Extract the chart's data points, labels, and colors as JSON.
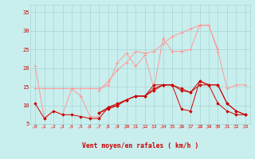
{
  "xlabel": "Vent moyen/en rafales ( km/h )",
  "ylim": [
    5,
    37
  ],
  "xlim": [
    -0.5,
    23.5
  ],
  "yticks": [
    5,
    10,
    15,
    20,
    25,
    30,
    35
  ],
  "x_ticks": [
    0,
    1,
    2,
    3,
    4,
    5,
    6,
    7,
    8,
    9,
    10,
    11,
    12,
    13,
    14,
    15,
    16,
    17,
    18,
    19,
    20,
    21,
    22,
    23
  ],
  "bg_color": "#c8efee",
  "grid_color": "#a8d4d0",
  "light_red": "#ff9999",
  "dark_red": "#cc0000",
  "series_light": [
    {
      "x": [
        0,
        1,
        2,
        3,
        4,
        5,
        6,
        7
      ],
      "y": [
        20.5,
        6.5,
        8.5,
        7.5,
        14.5,
        12.5,
        7.0,
        7.0
      ]
    },
    {
      "x": [
        0,
        1,
        2,
        3,
        4,
        5,
        6,
        7,
        8,
        9,
        10,
        11,
        12,
        13,
        14,
        15,
        16,
        17,
        18,
        19,
        20,
        21,
        22,
        23
      ],
      "y": [
        14.5,
        14.5,
        14.5,
        14.5,
        14.5,
        14.5,
        14.5,
        14.5,
        15.5,
        21.5,
        24.0,
        20.5,
        23.5,
        14.5,
        28.0,
        24.5,
        24.5,
        25.0,
        31.5,
        31.5,
        24.5,
        14.5,
        15.5,
        15.5
      ]
    },
    {
      "x": [
        7,
        8,
        9,
        10,
        11,
        12,
        13,
        14,
        15,
        16,
        17,
        18,
        19,
        20
      ],
      "y": [
        14.0,
        16.5,
        19.5,
        21.5,
        24.5,
        24.0,
        24.5,
        26.5,
        28.5,
        29.5,
        30.5,
        31.5,
        31.5,
        25.0
      ]
    }
  ],
  "series_dark": [
    {
      "x": [
        0,
        1,
        2,
        3,
        4,
        5,
        6,
        7,
        8,
        9,
        10,
        11,
        12,
        13,
        14,
        15,
        16,
        17,
        18,
        19,
        20,
        21,
        22,
        23
      ],
      "y": [
        10.5,
        6.5,
        8.5,
        7.5,
        7.5,
        7.0,
        6.5,
        6.5,
        9.5,
        10.0,
        11.5,
        12.5,
        12.5,
        15.5,
        15.5,
        15.5,
        9.0,
        8.5,
        16.5,
        15.5,
        10.5,
        8.5,
        7.5,
        7.5
      ]
    },
    {
      "x": [
        7,
        8,
        9,
        10,
        11,
        12,
        13,
        14,
        15,
        16,
        17,
        18,
        19,
        20,
        21,
        22,
        23
      ],
      "y": [
        8.0,
        9.0,
        10.0,
        11.5,
        12.5,
        12.5,
        14.5,
        15.5,
        15.5,
        14.0,
        13.5,
        15.5,
        15.5,
        15.5,
        10.5,
        8.5,
        7.5
      ]
    },
    {
      "x": [
        7,
        8,
        9,
        10,
        11,
        12,
        13,
        14,
        15,
        16,
        17,
        18,
        19,
        20,
        21,
        22,
        23
      ],
      "y": [
        8.0,
        9.5,
        10.5,
        11.5,
        12.5,
        12.5,
        14.0,
        15.5,
        15.5,
        14.5,
        13.5,
        16.5,
        15.5,
        15.5,
        10.5,
        8.5,
        7.5
      ]
    }
  ]
}
